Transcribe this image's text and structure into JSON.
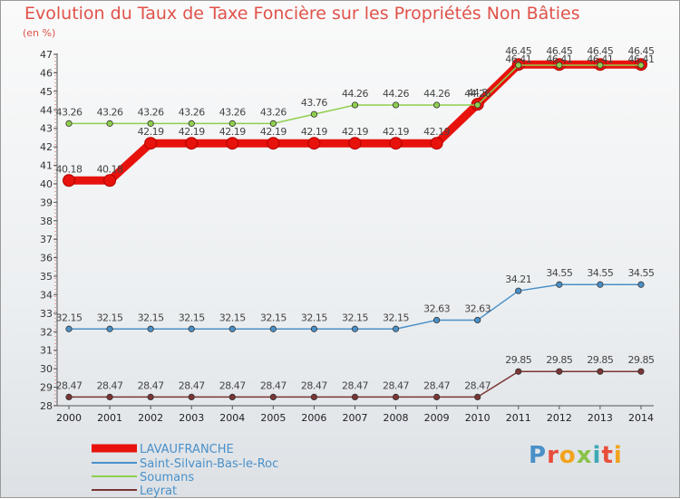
{
  "title": "Evolution du Taux de Taxe Foncière sur les Propriétés Non Bâties",
  "unit_label": "(en %)",
  "logo": {
    "text": "Proxiti",
    "colors": [
      "#4a90c8",
      "#e84e3b",
      "#f2a31c",
      "#8bc34a",
      "#3fa9b5",
      "#e84e3b",
      "#f2a31c"
    ]
  },
  "chart_data": {
    "type": "line",
    "title": "Evolution du Taux de Taxe Foncière sur les Propriétés Non Bâties",
    "ylabel": "(en %)",
    "xlabel": "",
    "x": [
      "2000",
      "2001",
      "2002",
      "2003",
      "2004",
      "2005",
      "2006",
      "2007",
      "2008",
      "2009",
      "2010",
      "2011",
      "2012",
      "2013",
      "2014"
    ],
    "ylim": [
      28,
      47
    ],
    "yticks": [
      28,
      29,
      30,
      31,
      32,
      33,
      34,
      35,
      36,
      37,
      38,
      39,
      40,
      41,
      42,
      43,
      44,
      45,
      46,
      47
    ],
    "grid": false,
    "legend_position": "bottom-left",
    "series": [
      {
        "name": "LAVAUFRANCHE",
        "color": "#e8120c",
        "values": [
          40.18,
          40.18,
          42.19,
          42.19,
          42.19,
          42.19,
          42.19,
          42.19,
          42.19,
          42.19,
          44.3,
          46.45,
          46.45,
          46.45,
          46.45
        ],
        "labels": [
          "40.18",
          "40.18",
          "42.19",
          "42.19",
          "42.19",
          "42.19",
          "42.19",
          "42.19",
          "42.19",
          "42.19",
          "44.3",
          "46.45",
          "46.45",
          "46.45",
          "46.45"
        ]
      },
      {
        "name": "Saint-Silvain-Bas-le-Roc",
        "color": "#4a90c8",
        "values": [
          32.15,
          32.15,
          32.15,
          32.15,
          32.15,
          32.15,
          32.15,
          32.15,
          32.15,
          32.63,
          32.63,
          34.21,
          34.55,
          34.55,
          34.55
        ],
        "labels": [
          "32.15",
          "32.15",
          "32.15",
          "32.15",
          "32.15",
          "32.15",
          "32.15",
          "32.15",
          "32.15",
          "32.63",
          "32.63",
          "34.21",
          "34.55",
          "34.55",
          "34.55"
        ]
      },
      {
        "name": "Soumans",
        "color": "#8fcf4e",
        "values": [
          43.26,
          43.26,
          43.26,
          43.26,
          43.26,
          43.26,
          43.76,
          44.26,
          44.26,
          44.26,
          44.26,
          46.41,
          46.41,
          46.41,
          46.41
        ],
        "labels": [
          "43.26",
          "43.26",
          "43.26",
          "43.26",
          "43.26",
          "43.26",
          "43.76",
          "44.26",
          "44.26",
          "44.26",
          "44.26",
          "46.41",
          "46.41",
          "46.41",
          "46.41"
        ]
      },
      {
        "name": "Leyrat",
        "color": "#7a3535",
        "values": [
          28.47,
          28.47,
          28.47,
          28.47,
          28.47,
          28.47,
          28.47,
          28.47,
          28.47,
          28.47,
          28.47,
          29.85,
          29.85,
          29.85,
          29.85
        ],
        "labels": [
          "28.47",
          "28.47",
          "28.47",
          "28.47",
          "28.47",
          "28.47",
          "28.47",
          "28.47",
          "28.47",
          "28.47",
          "28.47",
          "29.85",
          "29.85",
          "29.85",
          "29.85"
        ]
      }
    ]
  }
}
